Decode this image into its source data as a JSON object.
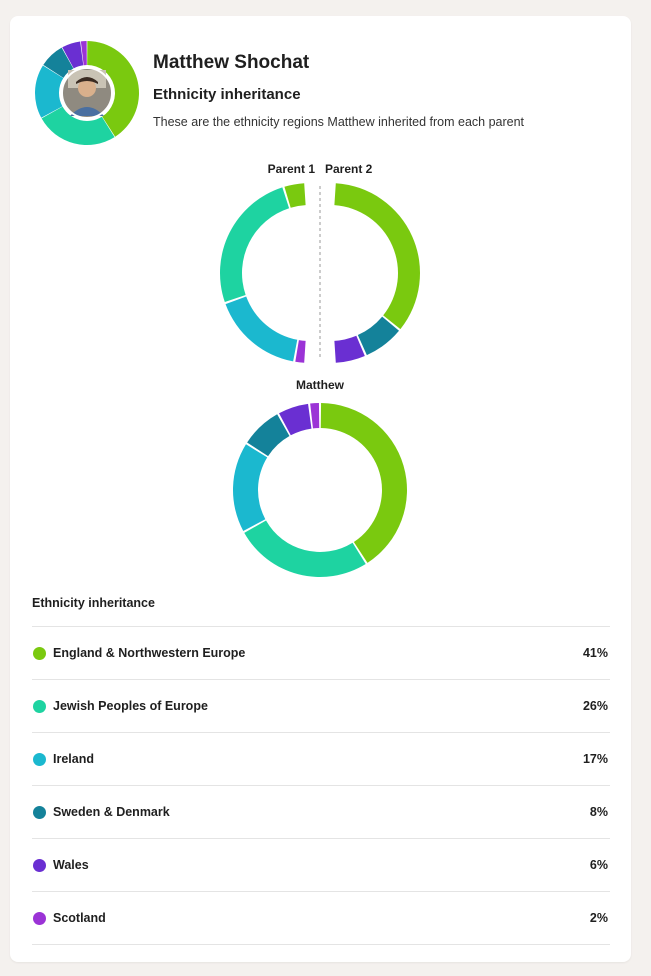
{
  "user": {
    "name": "Matthew Shochat"
  },
  "header": {
    "subtitle": "Ethnicity inheritance",
    "description": "These are the ethnicity regions Matthew inherited from each parent"
  },
  "labels": {
    "parent1": "Parent 1",
    "parent2": "Parent 2",
    "child": "Matthew"
  },
  "legend_title": "Ethnicity inheritance",
  "colors": {
    "england": "#7ac90f",
    "jewish": "#1ed3a1",
    "ireland": "#1bb8cf",
    "sweden": "#14829a",
    "wales": "#6a2fd2",
    "scotland": "#9b33d6"
  },
  "chart_data": [
    {
      "type": "pie",
      "title": "Matthew",
      "series": [
        {
          "name": "England & Northwestern Europe",
          "value": 41
        },
        {
          "name": "Jewish Peoples of Europe",
          "value": 26
        },
        {
          "name": "Ireland",
          "value": 17
        },
        {
          "name": "Sweden & Denmark",
          "value": 8
        },
        {
          "name": "Wales",
          "value": 6
        },
        {
          "name": "Scotland",
          "value": 2
        }
      ]
    },
    {
      "type": "pie",
      "title": "Parent 1",
      "series": [
        {
          "name": "Scotland",
          "value": 2
        },
        {
          "name": "Ireland",
          "value": 17
        },
        {
          "name": "Jewish Peoples of Europe",
          "value": 26
        },
        {
          "name": "England & Northwestern Europe",
          "value": 4
        }
      ]
    },
    {
      "type": "pie",
      "title": "Parent 2",
      "series": [
        {
          "name": "England & Northwestern Europe",
          "value": 37
        },
        {
          "name": "Sweden & Denmark",
          "value": 8
        },
        {
          "name": "Wales",
          "value": 6
        }
      ]
    }
  ],
  "regions": [
    {
      "key": "england",
      "name": "England & Northwestern Europe",
      "percent": "41%"
    },
    {
      "key": "jewish",
      "name": "Jewish Peoples of Europe",
      "percent": "26%"
    },
    {
      "key": "ireland",
      "name": "Ireland",
      "percent": "17%"
    },
    {
      "key": "sweden",
      "name": "Sweden & Denmark",
      "percent": "8%"
    },
    {
      "key": "wales",
      "name": "Wales",
      "percent": "6%"
    },
    {
      "key": "scotland",
      "name": "Scotland",
      "percent": "2%"
    }
  ]
}
